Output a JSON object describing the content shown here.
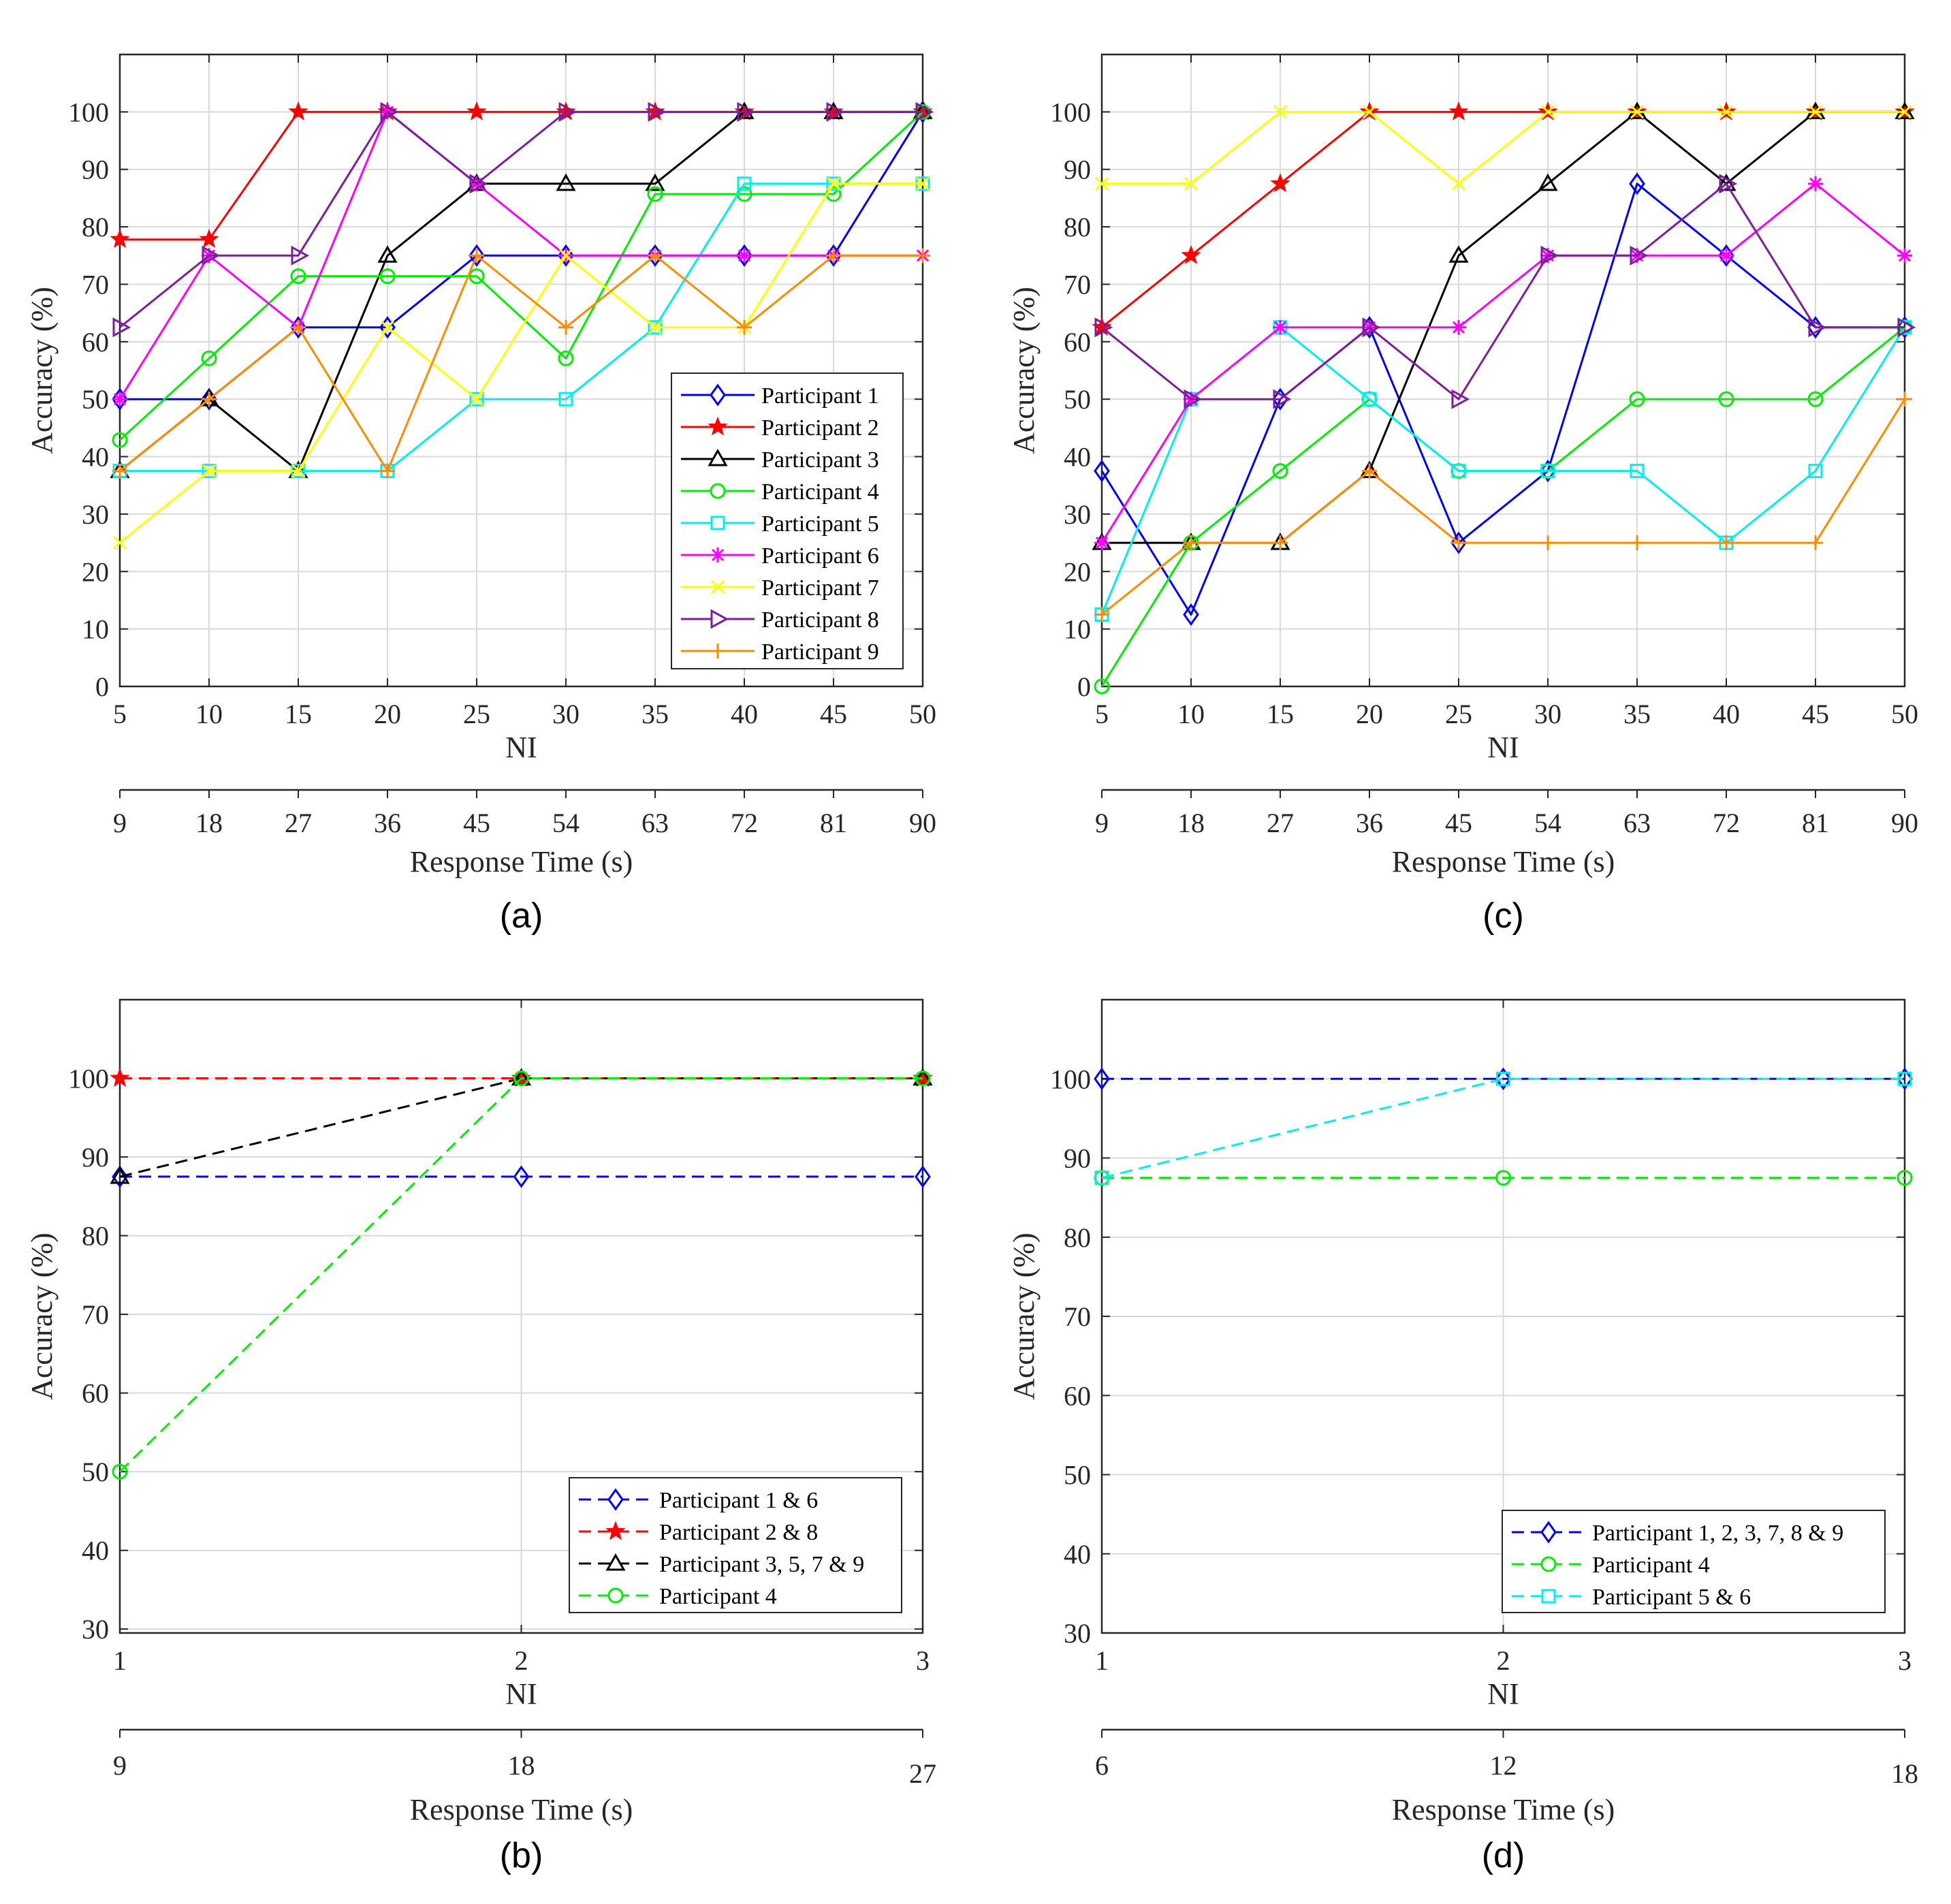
{
  "chart_data": [
    {
      "panel": "(a)",
      "type": "line",
      "xlabel": "NI",
      "xlabel2": "Response Time (s)",
      "ylabel": "Accuracy (%)",
      "x": [
        5,
        10,
        15,
        20,
        25,
        30,
        35,
        40,
        45,
        50
      ],
      "x_ticks": [
        "5",
        "10",
        "15",
        "20",
        "25",
        "30",
        "35",
        "40",
        "45",
        "50"
      ],
      "x2_ticks": [
        "9",
        "18",
        "27",
        "36",
        "45",
        "54",
        "63",
        "72",
        "81",
        "90"
      ],
      "y_ticks": [
        "0",
        "10",
        "20",
        "30",
        "40",
        "50",
        "60",
        "70",
        "80",
        "90",
        "100"
      ],
      "ylim": [
        0,
        110
      ],
      "legend_position": "lower-right",
      "grid": true,
      "series": [
        {
          "name": "Participant 1",
          "color": "#0000ff",
          "marker": "diamond",
          "values": [
            50,
            50,
            62.5,
            62.5,
            75,
            75,
            75,
            75,
            75,
            100
          ]
        },
        {
          "name": "Participant 2",
          "color": "#ff0000",
          "marker": "star",
          "values": [
            77.8,
            77.8,
            100,
            100,
            100,
            100,
            100,
            100,
            100,
            100
          ]
        },
        {
          "name": "Participant 3",
          "color": "#000000",
          "marker": "triangle",
          "values": [
            37.5,
            50,
            37.5,
            75,
            87.5,
            87.5,
            87.5,
            100,
            100,
            100
          ]
        },
        {
          "name": "Participant 4",
          "color": "#00ee00",
          "marker": "circle",
          "values": [
            42.9,
            57.1,
            71.4,
            71.4,
            71.4,
            57.1,
            85.7,
            85.7,
            85.7,
            100
          ]
        },
        {
          "name": "Participant 5",
          "color": "#00eeee",
          "marker": "square",
          "values": [
            37.5,
            37.5,
            37.5,
            37.5,
            50,
            50,
            62.5,
            87.5,
            87.5,
            87.5
          ]
        },
        {
          "name": "Participant 6",
          "color": "#ff00ff",
          "marker": "asterisk",
          "values": [
            50,
            75,
            62.5,
            100,
            87.5,
            75,
            75,
            75,
            75,
            75
          ]
        },
        {
          "name": "Participant 7",
          "color": "#ffff00",
          "marker": "x",
          "values": [
            25,
            37.5,
            37.5,
            62.5,
            50,
            75,
            62.5,
            62.5,
            87.5,
            87.5
          ]
        },
        {
          "name": "Participant 8",
          "color": "#7e1e9c",
          "marker": "triangle-right",
          "values": [
            62.5,
            75,
            75,
            100,
            87.5,
            100,
            100,
            100,
            100,
            100
          ]
        },
        {
          "name": "Participant 9",
          "color": "#ff8c00",
          "marker": "plus",
          "values": [
            37.5,
            50,
            62.5,
            37.5,
            75,
            62.5,
            75,
            62.5,
            75,
            75
          ]
        }
      ]
    },
    {
      "panel": "(b)",
      "type": "line",
      "xlabel": "NI",
      "xlabel2": "Response Time (s)",
      "ylabel": "Accuracy (%)",
      "x": [
        1,
        2,
        3
      ],
      "x_ticks": [
        "1",
        "2",
        "3"
      ],
      "x2_ticks": [
        "9",
        "18",
        "27"
      ],
      "y_ticks": [
        "30",
        "40",
        "50",
        "60",
        "70",
        "80",
        "90",
        "100"
      ],
      "ylim": [
        29.5,
        110
      ],
      "legend_position": "lower-right",
      "grid": true,
      "series": [
        {
          "name": "Participant 1 & 6",
          "color": "#0000ff",
          "marker": "diamond",
          "values": [
            87.5,
            87.5,
            87.5
          ]
        },
        {
          "name": "Participant 2 & 8",
          "color": "#ff0000",
          "marker": "star",
          "values": [
            100,
            100,
            100
          ]
        },
        {
          "name": "Participant 3, 5, 7 & 9",
          "color": "#000000",
          "marker": "triangle",
          "values": [
            87.5,
            100,
            100
          ]
        },
        {
          "name": "Participant 4",
          "color": "#00ee00",
          "marker": "circle",
          "values": [
            50,
            100,
            100
          ]
        }
      ]
    },
    {
      "panel": "(c)",
      "type": "line",
      "xlabel": "NI",
      "xlabel2": "Response Time (s)",
      "ylabel": "Accuracy (%)",
      "x": [
        5,
        10,
        15,
        20,
        25,
        30,
        35,
        40,
        45,
        50
      ],
      "x_ticks": [
        "5",
        "10",
        "15",
        "20",
        "25",
        "30",
        "35",
        "40",
        "45",
        "50"
      ],
      "x2_ticks": [
        "9",
        "18",
        "27",
        "36",
        "45",
        "54",
        "63",
        "72",
        "81",
        "90"
      ],
      "y_ticks": [
        "0",
        "10",
        "20",
        "30",
        "40",
        "50",
        "60",
        "70",
        "80",
        "90",
        "100"
      ],
      "ylim": [
        0,
        110
      ],
      "grid": true,
      "series": [
        {
          "name": "Participant 1",
          "color": "#0000ff",
          "marker": "diamond",
          "values": [
            37.5,
            12.5,
            50,
            62.5,
            25,
            37.5,
            87.5,
            75,
            62.5,
            62.5
          ]
        },
        {
          "name": "Participant 2",
          "color": "#ff0000",
          "marker": "star",
          "values": [
            62.5,
            75,
            87.5,
            100,
            100,
            100,
            100,
            100,
            100,
            100
          ]
        },
        {
          "name": "Participant 3",
          "color": "#000000",
          "marker": "triangle",
          "values": [
            25,
            25,
            25,
            37.5,
            75,
            87.5,
            100,
            87.5,
            100,
            100
          ]
        },
        {
          "name": "Participant 4",
          "color": "#00ee00",
          "marker": "circle",
          "values": [
            0,
            25,
            37.5,
            50,
            37.5,
            37.5,
            50,
            50,
            50,
            62.5
          ]
        },
        {
          "name": "Participant 5",
          "color": "#00eeee",
          "marker": "square",
          "values": [
            12.5,
            50,
            62.5,
            50,
            37.5,
            37.5,
            37.5,
            25,
            37.5,
            62.5
          ]
        },
        {
          "name": "Participant 6",
          "color": "#ff00ff",
          "marker": "asterisk",
          "values": [
            25,
            50,
            62.5,
            62.5,
            62.5,
            75,
            75,
            75,
            87.5,
            75
          ]
        },
        {
          "name": "Participant 7",
          "color": "#ffff00",
          "marker": "x",
          "values": [
            87.5,
            87.5,
            100,
            100,
            87.5,
            100,
            100,
            100,
            100,
            100
          ]
        },
        {
          "name": "Participant 8",
          "color": "#7e1e9c",
          "marker": "triangle-right",
          "values": [
            62.5,
            50,
            50,
            62.5,
            50,
            75,
            75,
            87.5,
            62.5,
            62.5
          ]
        },
        {
          "name": "Participant 9",
          "color": "#ff8c00",
          "marker": "plus",
          "values": [
            12.5,
            25,
            25,
            37.5,
            25,
            25,
            25,
            25,
            25,
            50
          ]
        }
      ]
    },
    {
      "panel": "(d)",
      "type": "line",
      "xlabel": "NI",
      "xlabel2": "Response Time (s)",
      "ylabel": "Accuracy (%)",
      "x": [
        1,
        2,
        3
      ],
      "x_ticks": [
        "1",
        "2",
        "3"
      ],
      "x2_ticks": [
        "6",
        "12",
        "18"
      ],
      "y_ticks": [
        "30",
        "40",
        "50",
        "60",
        "70",
        "80",
        "90",
        "100"
      ],
      "ylim": [
        30,
        110
      ],
      "legend_position": "lower-right",
      "grid": true,
      "series": [
        {
          "name": "Participant 1, 2, 3, 7, 8 & 9",
          "color": "#0000ff",
          "marker": "diamond",
          "values": [
            100,
            100,
            100
          ]
        },
        {
          "name": "Participant 4",
          "color": "#00ee00",
          "marker": "circle",
          "values": [
            87.5,
            87.5,
            87.5
          ]
        },
        {
          "name": "Participant 5 & 6",
          "color": "#00eeee",
          "marker": "square",
          "values": [
            87.5,
            100,
            100
          ]
        }
      ]
    }
  ]
}
